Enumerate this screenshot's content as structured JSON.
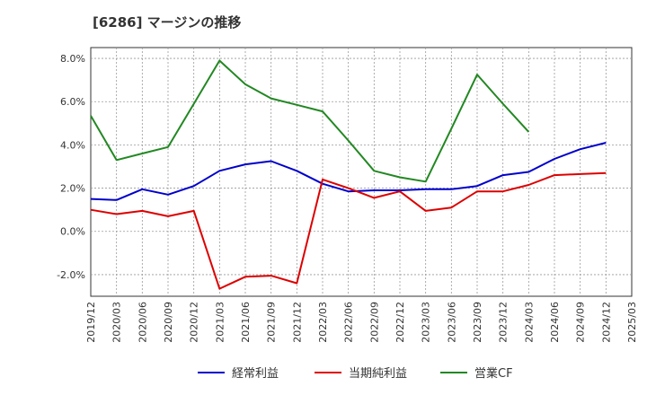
{
  "chart_data": {
    "type": "line",
    "title": "[6286]  マージンの推移",
    "xlabel": "",
    "ylabel": "",
    "x": [
      "2019/12",
      "2020/03",
      "2020/06",
      "2020/09",
      "2020/12",
      "2021/03",
      "2021/06",
      "2021/09",
      "2021/12",
      "2022/03",
      "2022/06",
      "2022/09",
      "2022/12",
      "2023/03",
      "2023/06",
      "2023/09",
      "2023/12",
      "2024/03",
      "2024/06",
      "2024/09",
      "2024/12",
      "2025/03"
    ],
    "ylim": [
      -3.0,
      8.5
    ],
    "yticks": [
      -2.0,
      0.0,
      2.0,
      4.0,
      6.0,
      8.0
    ],
    "ytick_labels": [
      "-2.0%",
      "0.0%",
      "2.0%",
      "4.0%",
      "6.0%",
      "8.0%"
    ],
    "grid": true,
    "legend_position": "bottom",
    "series": [
      {
        "name": "経常利益",
        "color": "#0000cc",
        "values": [
          1.5,
          1.45,
          1.95,
          1.7,
          2.1,
          2.8,
          3.1,
          3.25,
          2.8,
          2.2,
          1.85,
          1.9,
          1.9,
          1.95,
          1.95,
          2.1,
          2.6,
          2.75,
          3.35,
          3.8,
          4.1,
          null
        ]
      },
      {
        "name": "当期純利益",
        "color": "#dd0000",
        "values": [
          1.0,
          0.8,
          0.95,
          0.7,
          0.95,
          -2.65,
          -2.1,
          -2.05,
          -2.4,
          2.4,
          2.0,
          1.55,
          1.85,
          0.95,
          1.1,
          1.85,
          1.85,
          2.15,
          2.6,
          2.65,
          2.7,
          null
        ]
      },
      {
        "name": "営業CF",
        "color": "#228822",
        "values": [
          5.35,
          3.3,
          3.6,
          3.9,
          5.9,
          7.9,
          6.8,
          6.15,
          5.85,
          5.55,
          4.2,
          2.8,
          2.5,
          2.3,
          4.75,
          7.25,
          5.9,
          4.6,
          null,
          null,
          null,
          null
        ]
      }
    ]
  }
}
